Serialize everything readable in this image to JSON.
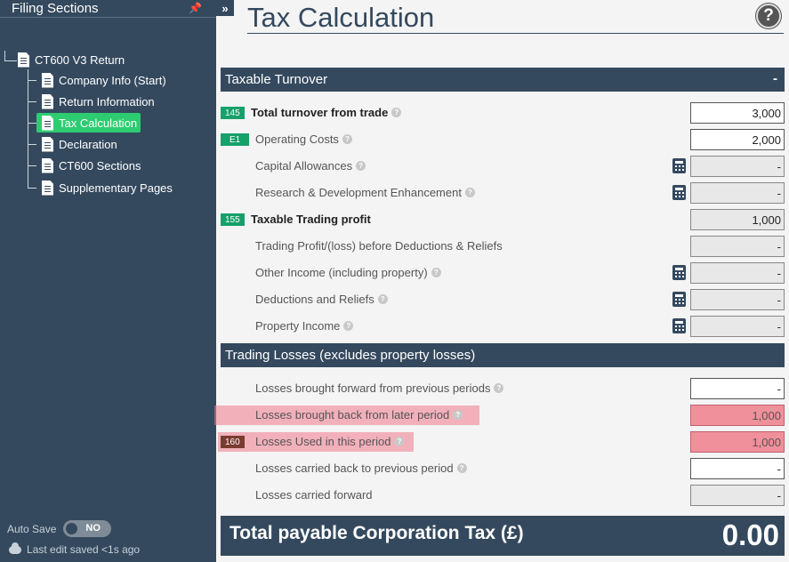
{
  "sidebar": {
    "title": "Filing Sections",
    "root": "CT600 V3 Return",
    "items": [
      {
        "label": "Company Info (Start)"
      },
      {
        "label": "Return Information"
      },
      {
        "label": "Tax Calculation",
        "active": true
      },
      {
        "label": "Declaration"
      },
      {
        "label": "CT600 Sections"
      },
      {
        "label": "Supplementary Pages"
      }
    ],
    "autosave_label": "Auto Save",
    "autosave_state": "NO",
    "last_saved": "Last edit saved <1s ago"
  },
  "main": {
    "title": "Tax Calculation",
    "expand": "»",
    "help": "?",
    "sections": [
      {
        "title": "Taxable Turnover",
        "collapse": "-",
        "rows": [
          {
            "box": "145",
            "label": "Total turnover from trade",
            "bold": true,
            "help": true,
            "value": "3,000"
          },
          {
            "box": "E1",
            "label": "Operating Costs",
            "help": true,
            "value": "2,000"
          },
          {
            "label": "Capital Allowances",
            "help": true,
            "calc": true,
            "value": "-"
          },
          {
            "label": "Research & Development Enhancement",
            "help": true,
            "calc": true,
            "value": "-"
          },
          {
            "box": "155",
            "label": "Taxable Trading profit",
            "bold": true,
            "value": "1,000"
          },
          {
            "label": "Trading Profit/(loss) before Deductions & Reliefs",
            "value": "-"
          },
          {
            "label": "Other Income (including property)",
            "help": true,
            "calc": true,
            "value": "-"
          },
          {
            "label": "Deductions and Reliefs",
            "help": true,
            "calc": true,
            "value": "-"
          },
          {
            "label": "Property Income",
            "help": true,
            "calc": true,
            "value": "-"
          }
        ]
      },
      {
        "title": "Trading Losses (excludes property losses)",
        "rows": [
          {
            "label": "Losses brought forward from previous periods",
            "help": true,
            "value": "-"
          },
          {
            "label": "Losses brought back from later period",
            "help": true,
            "value": "1,000"
          },
          {
            "box": "160",
            "label": "Losses Used in this period",
            "help": true,
            "value": "1,000"
          },
          {
            "label": "Losses carried back to previous period",
            "help": true,
            "value": "-"
          },
          {
            "label": "Losses carried forward",
            "value": "-"
          }
        ]
      }
    ],
    "total_label": "Total payable Corporation Tax (£)",
    "total_value": "0.00"
  },
  "colors": {
    "sidebar_bg": "#34495e",
    "active_item": "#2ecc71",
    "box_badge": "#16a06a",
    "warning": "#f0909a"
  }
}
